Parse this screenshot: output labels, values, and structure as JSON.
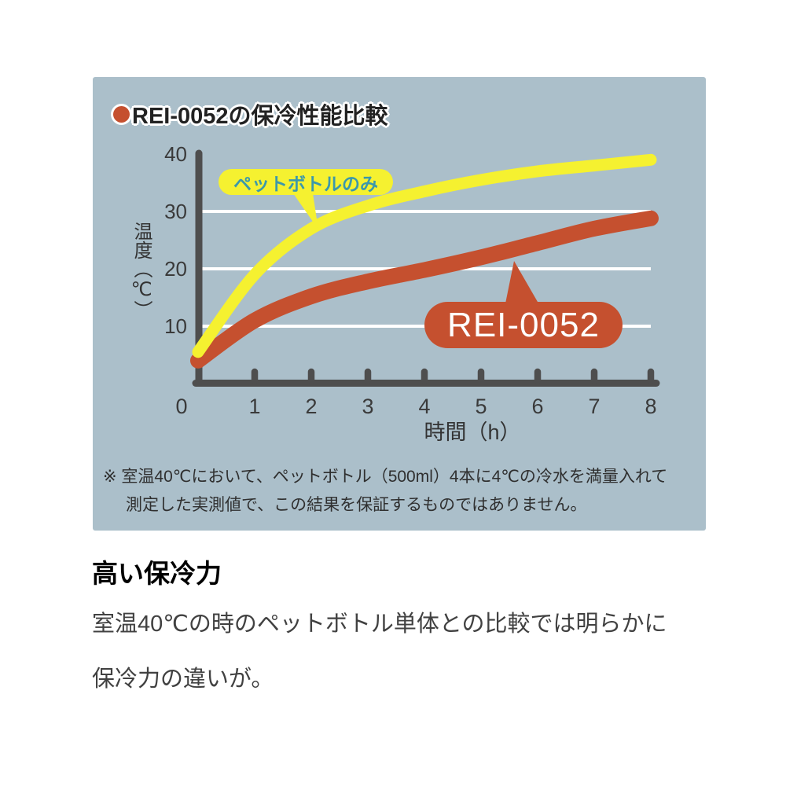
{
  "panel": {
    "title": "REI-0052の保冷性能比較",
    "footnote_line1": "※ 室温40℃において、ペットボトル（500ml）4本に4℃の冷水を満量入れて",
    "footnote_line2": "測定した実測値で、この結果を保証するものではありません。"
  },
  "chart_data": {
    "type": "line",
    "title": "REI-0052の保冷性能比較",
    "xlabel": "時間（h）",
    "ylabel": "温度（℃）",
    "x": [
      0,
      1,
      2,
      3,
      4,
      5,
      6,
      7,
      8
    ],
    "xlim": [
      0,
      8
    ],
    "ylim": [
      0,
      40
    ],
    "yticks": [
      10,
      20,
      30,
      40
    ],
    "grid_ticks": [
      10,
      20,
      30
    ],
    "grid": "horizontal white gridlines",
    "legend_position": "callout bubbles on plot",
    "series": [
      {
        "name": "ペットボトルのみ",
        "color": "#f5f130",
        "values": [
          5.5,
          19,
          27,
          31,
          33.5,
          35.5,
          37,
          38,
          39
        ]
      },
      {
        "name": "REI-0052",
        "color": "#c5502f",
        "values": [
          4,
          11,
          15.2,
          17.8,
          19.8,
          22,
          24.5,
          27,
          28.8
        ]
      }
    ]
  },
  "caption": {
    "heading": "高い保冷力",
    "line1": "室温40℃の時のペットボトル単体との比較では明らかに",
    "line2": "保冷力の違いが。"
  },
  "colors": {
    "panel_bg": "#abbfca",
    "axis": "#4e4e4e",
    "grid": "#ffffff",
    "accent_red": "#c5502f",
    "accent_yellow": "#f5f130",
    "callout_pet_text": "#3b98ab",
    "tick_label": "#3a3a3a"
  }
}
